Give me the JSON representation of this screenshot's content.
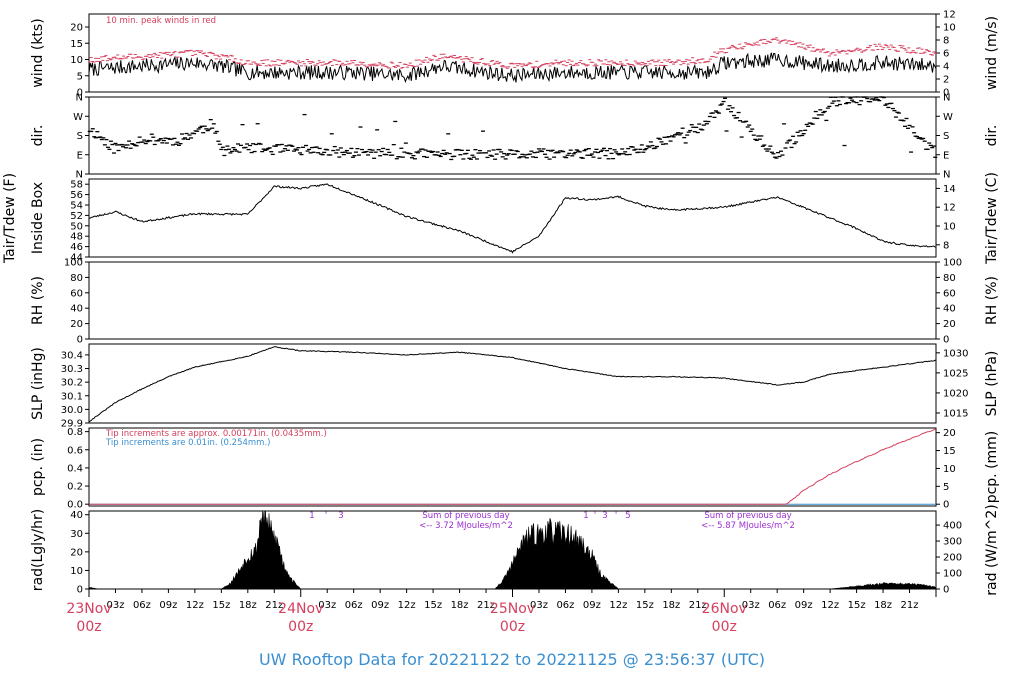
{
  "footer": "UW Rooftop Data for 20221122  to  20221125 @ 23:56:37  (UTC)",
  "colors": {
    "red": "#d6405e",
    "blue": "#3a8fd1",
    "purple": "#9b2fd0",
    "black": "#000000"
  },
  "time_axis": {
    "hour_labels": [
      "03z",
      "06z",
      "09z",
      "12z",
      "15z",
      "18z",
      "21z"
    ],
    "day_labels": [
      {
        "date": "23Nov",
        "hour": "00z"
      },
      {
        "date": "24Nov",
        "hour": "00z"
      },
      {
        "date": "25Nov",
        "hour": "00z"
      },
      {
        "date": "26Nov",
        "hour": "00z"
      }
    ]
  },
  "annotations": {
    "wind_note": "10 min. peak winds in red",
    "pcp_note_red": "Tip increments are approx. 0.00171in. (0.0435mm.)",
    "pcp_note_blue": "Tip increments are 0.01in. (0.254mm.)",
    "rad_sum_1_line1": "Sum of previous day",
    "rad_sum_1_line2": "<-- 3.72 MJoules/m^2",
    "rad_sum_2_line1": "Sum of previous day",
    "rad_sum_2_line2": "<-- 5.87 MJoules/m^2",
    "rad_ticks_1": [
      "1",
      "'",
      "3"
    ],
    "rad_ticks_2": [
      "1",
      "'",
      "3",
      "'",
      "5"
    ]
  },
  "chart_data": [
    {
      "type": "line",
      "id": "wind",
      "ylabel": "wind (kts)",
      "ylabel_right": "wind (m/s)",
      "ylim": [
        0,
        24
      ],
      "yticks": [
        "0",
        "5",
        "10",
        "15",
        "20"
      ],
      "ylim_right": [
        0,
        12
      ],
      "yticks_right": [
        "0",
        "2",
        "4",
        "6",
        "8",
        "10",
        "12"
      ],
      "x_hours": [
        0,
        6,
        12,
        15,
        18,
        24,
        30,
        36,
        40,
        48,
        54,
        60,
        66,
        70,
        72,
        78,
        84,
        90,
        96
      ],
      "series": [
        {
          "color": "#000000",
          "values": [
            7,
            8,
            9,
            8,
            6,
            6,
            6,
            5,
            8,
            5,
            6,
            6,
            6,
            6,
            9,
            10,
            8,
            9,
            8
          ]
        },
        {
          "color": "#d6405e",
          "values": [
            10,
            11,
            12,
            11,
            9,
            9,
            9,
            8,
            11,
            8,
            9,
            9,
            9,
            10,
            13,
            16,
            12,
            14,
            12
          ]
        }
      ]
    },
    {
      "type": "scatter",
      "id": "dir",
      "ylabel": "dir.",
      "ylabel_right": "dir.",
      "ylim": [
        0,
        360
      ],
      "yticks": [
        "N",
        "E",
        "S",
        "W",
        "N"
      ],
      "x_hours": [
        0,
        3,
        6,
        10,
        14,
        15,
        18,
        24,
        30,
        36,
        42,
        48,
        54,
        60,
        63,
        66,
        70,
        72,
        78,
        84,
        90,
        96
      ],
      "values": [
        215,
        115,
        165,
        155,
        235,
        110,
        120,
        110,
        100,
        95,
        90,
        90,
        95,
        95,
        120,
        175,
        230,
        340,
        75,
        340,
        350,
        90
      ]
    },
    {
      "type": "line",
      "id": "temp",
      "ylabel": "Inside Box",
      "ylabel_outer": "Tair/Tdew (F)",
      "ylabel_right": "Tair/Tdew (C)",
      "ylim": [
        44,
        59
      ],
      "yticks": [
        "44",
        "46",
        "48",
        "50",
        "52",
        "54",
        "56",
        "58"
      ],
      "ylim_right": [
        6.7,
        15
      ],
      "yticks_right": [
        "8",
        "10",
        "12",
        "14"
      ],
      "x_hours": [
        0,
        3,
        6,
        12,
        18,
        21,
        24,
        27,
        30,
        36,
        42,
        48,
        51,
        54,
        57,
        60,
        63,
        66,
        72,
        78,
        81,
        84,
        87,
        90,
        93,
        96
      ],
      "values": [
        51.5,
        52.7,
        50.8,
        52.3,
        52.2,
        57.6,
        57.2,
        58.0,
        56.0,
        51.8,
        49.0,
        45.0,
        48.0,
        55.4,
        55.0,
        55.6,
        53.8,
        53.0,
        53.6,
        55.5,
        53.5,
        51.5,
        49.5,
        47.0,
        46.2,
        46.0
      ]
    },
    {
      "type": "line",
      "id": "rh",
      "ylabel": "RH (%)",
      "ylabel_right": "RH (%)",
      "ylim": [
        0,
        100
      ],
      "yticks": [
        "0",
        "20",
        "40",
        "60",
        "80",
        "100"
      ],
      "yticks_right": [
        "0",
        "20",
        "40",
        "60",
        "80",
        "100"
      ],
      "values": []
    },
    {
      "type": "line",
      "id": "slp",
      "ylabel": "SLP (inHg)",
      "ylabel_right": "SLP (hPa)",
      "ylim": [
        29.9,
        30.48
      ],
      "yticks": [
        "29.9",
        "30.0",
        "30.1",
        "30.2",
        "30.3",
        "30.4"
      ],
      "ylim_right": [
        1012.5,
        1032.2
      ],
      "yticks_right": [
        "1015",
        "1020",
        "1025",
        "1030"
      ],
      "x_hours": [
        0,
        3,
        6,
        9,
        12,
        15,
        18,
        21,
        24,
        30,
        36,
        42,
        48,
        54,
        60,
        66,
        72,
        78,
        81,
        84,
        90,
        96
      ],
      "values": [
        29.91,
        30.05,
        30.15,
        30.24,
        30.31,
        30.35,
        30.39,
        30.46,
        30.43,
        30.42,
        30.4,
        30.42,
        30.38,
        30.3,
        30.24,
        30.24,
        30.23,
        30.18,
        30.2,
        30.26,
        30.31,
        30.36
      ]
    },
    {
      "type": "line",
      "id": "pcp",
      "ylabel": "pcp. (in)",
      "ylabel_right": "pcp. (mm)",
      "ylim": [
        -0.02,
        0.84
      ],
      "yticks": [
        "0.0",
        "0.2",
        "0.4",
        "0.6",
        "0.8"
      ],
      "ylim_right": [
        -0.5,
        21.3
      ],
      "yticks_right": [
        "0",
        "5",
        "10",
        "15",
        "20"
      ],
      "series": [
        {
          "color": "#d6405e",
          "x_hours": [
            0,
            79,
            81,
            84,
            87,
            90,
            93,
            96
          ],
          "values": [
            0,
            0,
            0.15,
            0.33,
            0.47,
            0.6,
            0.72,
            0.83
          ]
        },
        {
          "color": "#3a8fd1",
          "x_hours": [
            0,
            96
          ],
          "values": [
            0,
            0
          ]
        }
      ]
    },
    {
      "type": "area",
      "id": "rad",
      "ylabel": "rad(Lgly/hr)",
      "ylabel_right": "rad (W/m^2)",
      "ylim": [
        0,
        42
      ],
      "yticks": [
        "0",
        "10",
        "20",
        "30",
        "40"
      ],
      "ylim_right": [
        0,
        488
      ],
      "yticks_right": [
        "0",
        "100",
        "200",
        "300",
        "400"
      ],
      "x_hours": [
        0,
        1,
        15,
        16,
        17,
        18,
        19,
        19.5,
        20,
        21,
        21.5,
        22,
        23,
        24,
        46,
        47,
        48,
        49,
        50,
        51,
        52,
        53,
        54,
        55,
        56,
        57,
        58,
        60,
        72,
        84,
        86,
        90,
        94,
        96,
        97
      ],
      "values": [
        1,
        0,
        0,
        3,
        10,
        18,
        22,
        40,
        38,
        28,
        24,
        14,
        5,
        0,
        0,
        5,
        14,
        24,
        29,
        30,
        32,
        31,
        30,
        28,
        24,
        18,
        8,
        0,
        0,
        0,
        1,
        3,
        2.5,
        1,
        0
      ]
    }
  ]
}
